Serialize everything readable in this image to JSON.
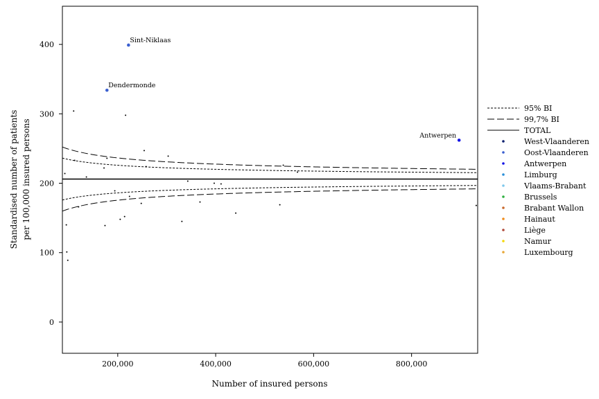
{
  "chart_data": {
    "type": "scatter",
    "title": "",
    "xlabel": "Number of insured persons",
    "ylabel": [
      "Standardised number of patients",
      "per 100,000 insured persons"
    ],
    "xlim": [
      87000,
      935000
    ],
    "ylim": [
      -45,
      455
    ],
    "x_ticks": [
      {
        "value": 200000,
        "label": "200,000"
      },
      {
        "value": 400000,
        "label": "400,000"
      },
      {
        "value": 600000,
        "label": "600,000"
      },
      {
        "value": 800000,
        "label": "800,000"
      }
    ],
    "y_ticks": [
      {
        "value": 0,
        "label": "0"
      },
      {
        "value": 100,
        "label": "100"
      },
      {
        "value": 200,
        "label": "200"
      },
      {
        "value": 300,
        "label": "300"
      },
      {
        "value": 400,
        "label": "400"
      }
    ],
    "grid": false,
    "legend_position": "right",
    "total_value": 206,
    "bands": [
      {
        "name": "95% BI",
        "style": "dotted",
        "z": 1.96
      },
      {
        "name": "99,7% BI",
        "style": "dashed",
        "z": 3
      }
    ],
    "legend": [
      {
        "label": "95% BI",
        "kind": "line",
        "dash": "3,2"
      },
      {
        "label": "99,7% BI",
        "kind": "line",
        "dash": "10,4"
      },
      {
        "label": "TOTAL",
        "kind": "line",
        "dash": ""
      },
      {
        "label": "West-Vlaanderen",
        "kind": "dot",
        "color": "#0b1f6e"
      },
      {
        "label": "Oost-Vlaanderen",
        "kind": "dot",
        "color": "#3a5fd0"
      },
      {
        "label": "Antwerpen",
        "kind": "dot",
        "color": "#1414e6"
      },
      {
        "label": "Limburg",
        "kind": "dot",
        "color": "#2a8fd8"
      },
      {
        "label": "Vlaams-Brabant",
        "kind": "dot",
        "color": "#7ec8ec"
      },
      {
        "label": "Brussels",
        "kind": "dot",
        "color": "#2fb040"
      },
      {
        "label": "Brabant Wallon",
        "kind": "dot",
        "color": "#c8682c"
      },
      {
        "label": "Hainaut",
        "kind": "dot",
        "color": "#f08c1a"
      },
      {
        "label": "Liège",
        "kind": "dot",
        "color": "#b04a3a"
      },
      {
        "label": "Namur",
        "kind": "dot",
        "color": "#f4d80a"
      },
      {
        "label": "Luxembourg",
        "kind": "dot",
        "color": "#e8a838"
      }
    ],
    "annotated_points": [
      {
        "label": "Sint-Niklaas",
        "x": 222000,
        "y": 399,
        "color": "#3a5fd0"
      },
      {
        "label": "Dendermonde",
        "x": 178000,
        "y": 334,
        "color": "#3a5fd0"
      },
      {
        "label": "Antwerpen",
        "x": 897000,
        "y": 262,
        "color": "#1414e6"
      }
    ],
    "points": [
      {
        "x": 92000,
        "y": 214
      },
      {
        "x": 95000,
        "y": 140
      },
      {
        "x": 96000,
        "y": 101
      },
      {
        "x": 98000,
        "y": 89
      },
      {
        "x": 110000,
        "y": 304
      },
      {
        "x": 112000,
        "y": 233
      },
      {
        "x": 120000,
        "y": 166
      },
      {
        "x": 136000,
        "y": 209
      },
      {
        "x": 172000,
        "y": 222
      },
      {
        "x": 174000,
        "y": 139
      },
      {
        "x": 178000,
        "y": 236
      },
      {
        "x": 194000,
        "y": 189
      },
      {
        "x": 205000,
        "y": 148
      },
      {
        "x": 214000,
        "y": 152
      },
      {
        "x": 216000,
        "y": 298
      },
      {
        "x": 224000,
        "y": 181
      },
      {
        "x": 248000,
        "y": 171
      },
      {
        "x": 254000,
        "y": 247
      },
      {
        "x": 258000,
        "y": 224
      },
      {
        "x": 303000,
        "y": 239
      },
      {
        "x": 331000,
        "y": 145
      },
      {
        "x": 343000,
        "y": 203
      },
      {
        "x": 368000,
        "y": 173
      },
      {
        "x": 397000,
        "y": 200
      },
      {
        "x": 411000,
        "y": 199
      },
      {
        "x": 441000,
        "y": 157
      },
      {
        "x": 531000,
        "y": 169
      },
      {
        "x": 538000,
        "y": 226
      },
      {
        "x": 567000,
        "y": 216
      },
      {
        "x": 932000,
        "y": 168
      }
    ]
  }
}
